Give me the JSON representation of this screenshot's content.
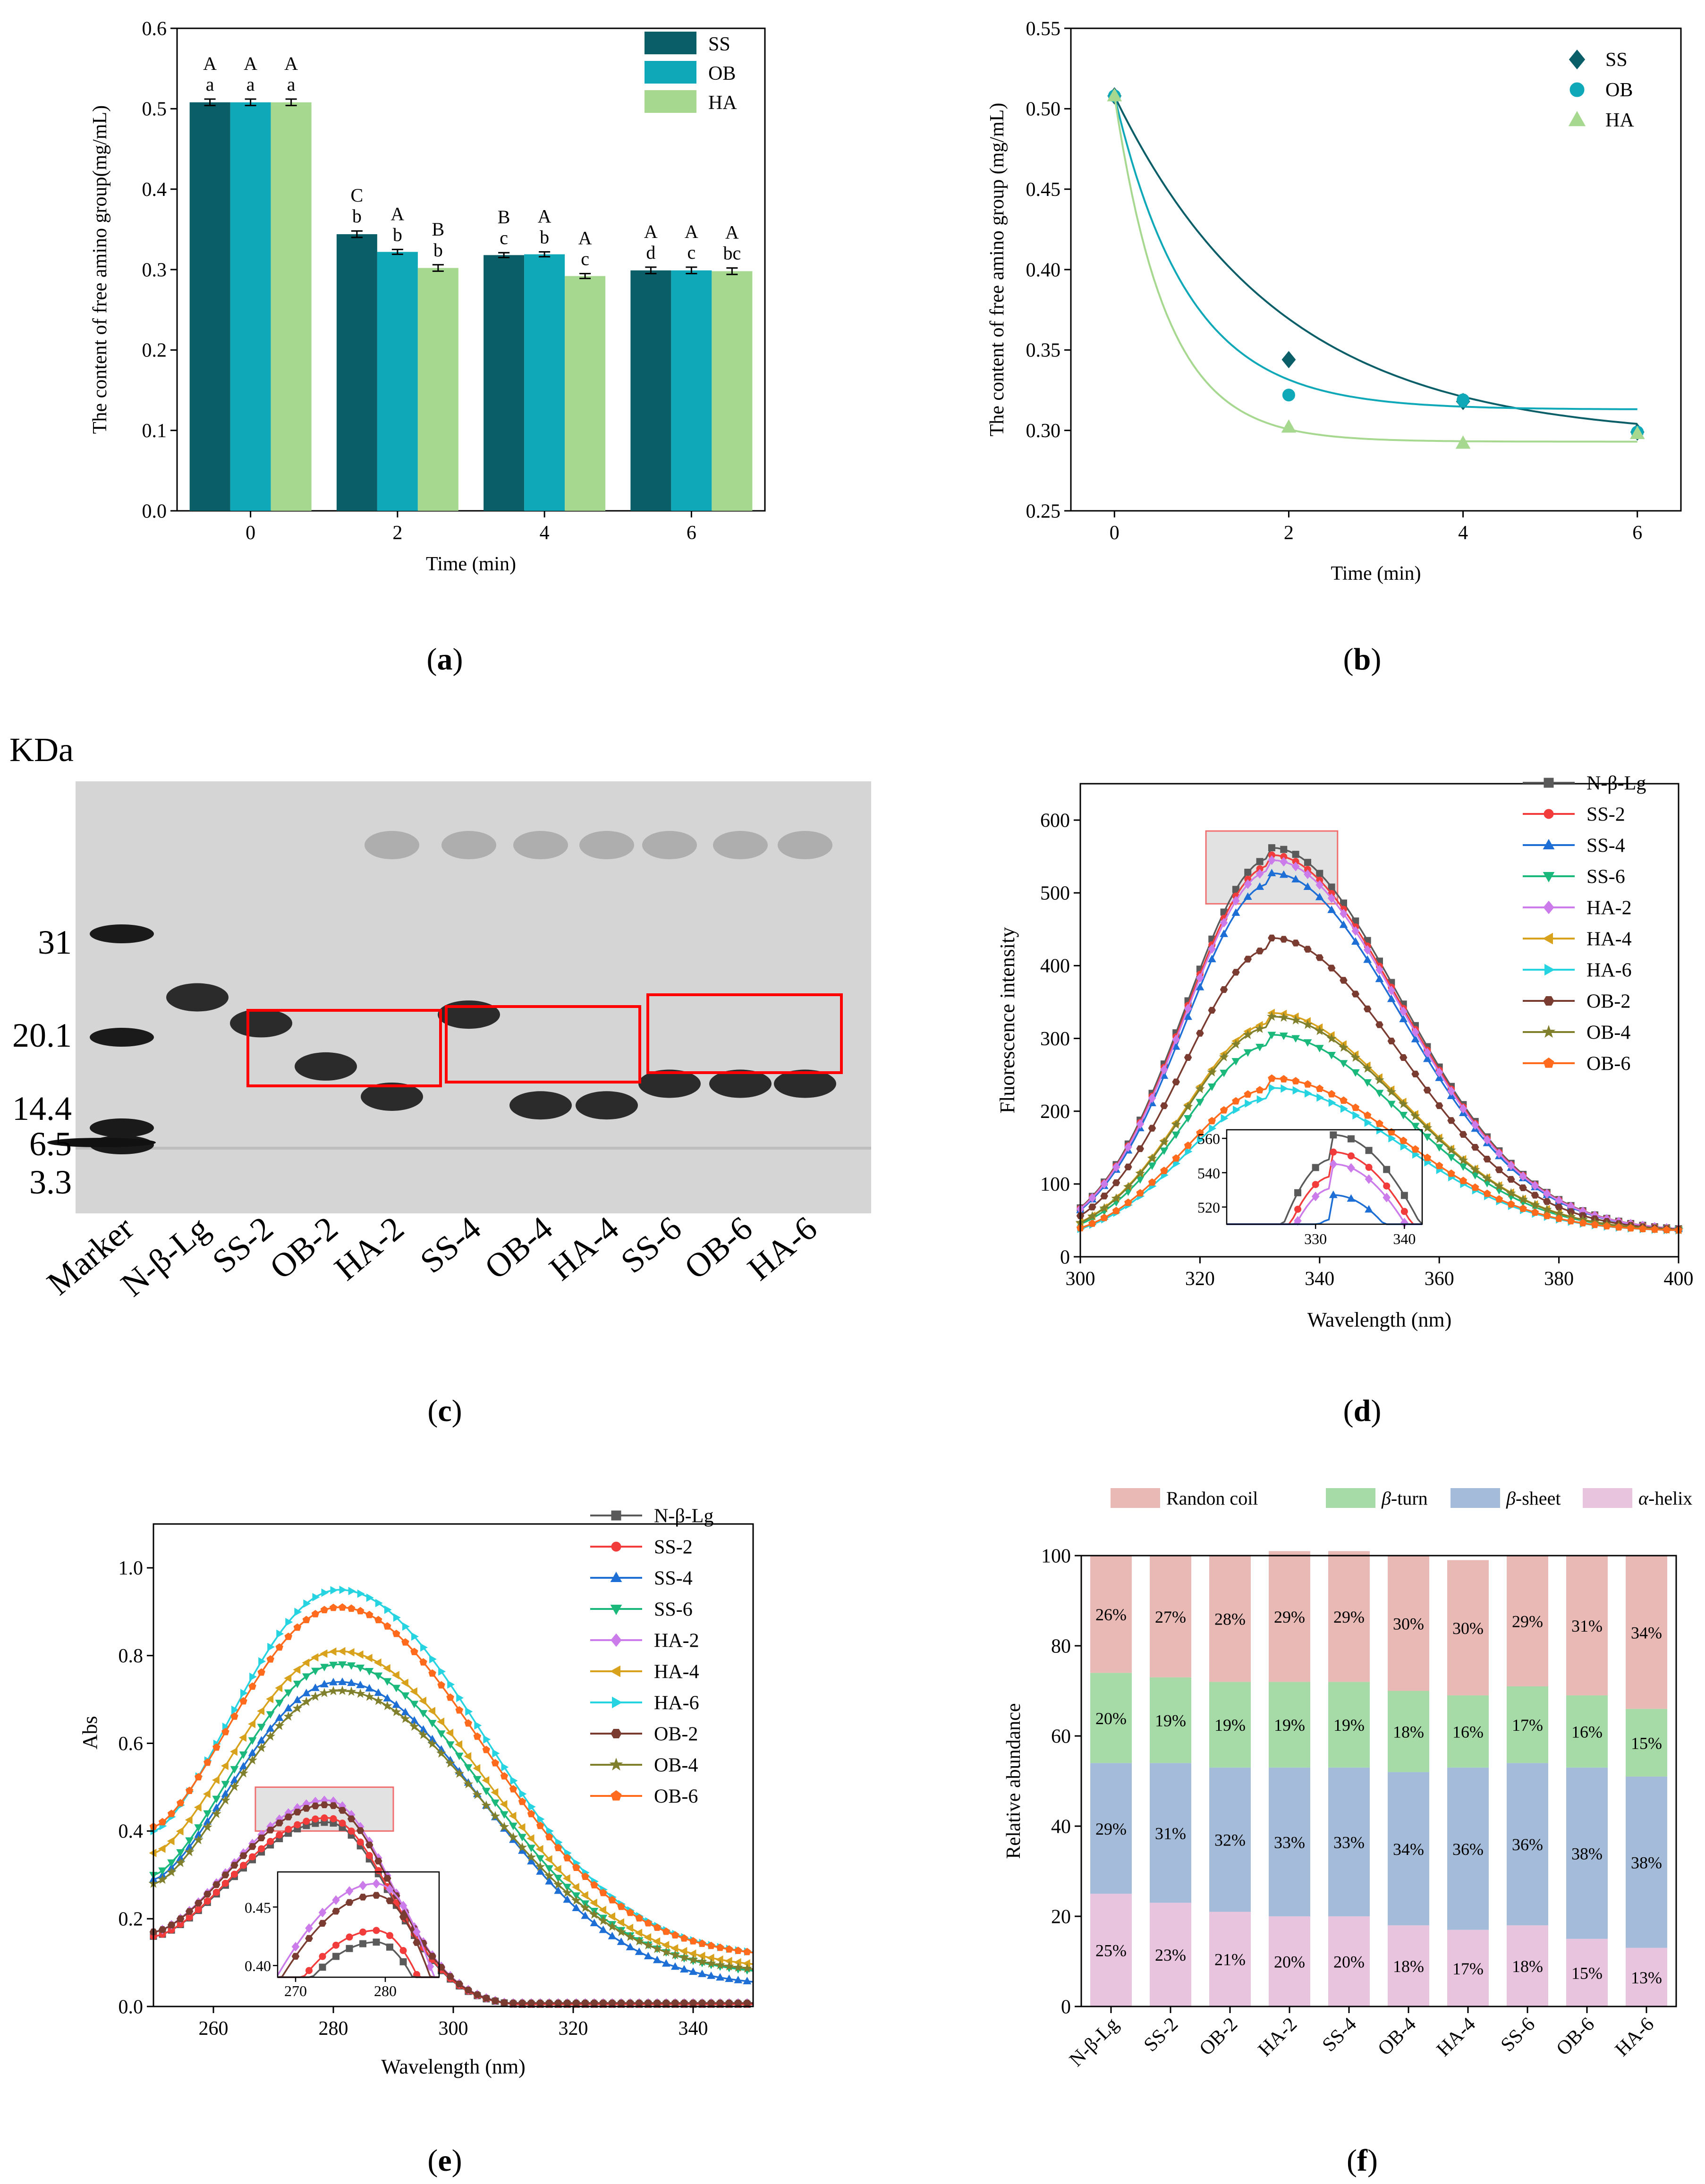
{
  "colors": {
    "SS": "#0a5e68",
    "OB": "#0fa8b8",
    "HA": "#a6d88f",
    "N-β-Lg": "#5a5a5a",
    "SS-2": "#f23b3b",
    "SS-4": "#1d6fd6",
    "SS-6": "#1ab87a",
    "HA-2": "#cc7bea",
    "HA-4": "#d9a21c",
    "HA-6": "#26d3e0",
    "OB-2": "#7a3b30",
    "OB-4": "#7f7f2c",
    "OB-6": "#ff6a1c",
    "coil": "#e8b9b5",
    "turn": "#a6dba8",
    "sheet": "#a4bcd9",
    "helix": "#e8c4df"
  },
  "panel_labels": {
    "a": "a",
    "b": "b",
    "c": "c",
    "d": "d",
    "e": "e",
    "f": "f"
  },
  "chart_data": [
    {
      "id": "a",
      "type": "bar",
      "xlabel": "Time (min)",
      "ylabel": "The content of free amino group(mg/mL)",
      "ylim": [
        0,
        0.6
      ],
      "yticks": [
        "0.0",
        "0.1",
        "0.2",
        "0.3",
        "0.4",
        "0.5",
        "0.6"
      ],
      "categories": [
        "0",
        "2",
        "4",
        "6"
      ],
      "series": [
        {
          "name": "SS",
          "values": [
            0.508,
            0.344,
            0.318,
            0.299
          ],
          "errors": [
            0.004,
            0.004,
            0.003,
            0.004
          ],
          "upper": [
            "A",
            "C",
            "B",
            "A"
          ],
          "lower": [
            "a",
            "b",
            "c",
            "d"
          ]
        },
        {
          "name": "OB",
          "values": [
            0.508,
            0.322,
            0.319,
            0.299
          ],
          "errors": [
            0.004,
            0.003,
            0.003,
            0.004
          ],
          "upper": [
            "A",
            "A",
            "A",
            "A"
          ],
          "lower": [
            "a",
            "b",
            "b",
            "c"
          ]
        },
        {
          "name": "HA",
          "values": [
            0.508,
            0.302,
            0.292,
            0.298
          ],
          "errors": [
            0.004,
            0.004,
            0.003,
            0.004
          ],
          "upper": [
            "A",
            "B",
            "A",
            "A"
          ],
          "lower": [
            "a",
            "b",
            "c",
            "bc"
          ]
        }
      ],
      "legend": [
        "SS",
        "OB",
        "HA"
      ],
      "legend_position": "top-right"
    },
    {
      "id": "b",
      "type": "scatter",
      "xlabel": "Time (min)",
      "ylabel": "The content of free amino group (mg/mL)",
      "xlim": [
        -0.5,
        6.5
      ],
      "xticks": [
        "0",
        "2",
        "4",
        "6"
      ],
      "ylim": [
        0.25,
        0.55
      ],
      "yticks": [
        "0.25",
        "0.30",
        "0.35",
        "0.40",
        "0.45",
        "0.50",
        "0.55"
      ],
      "series": [
        {
          "name": "SS",
          "marker": "diamond",
          "x": [
            0,
            2,
            4,
            6
          ],
          "y": [
            0.508,
            0.344,
            0.318,
            0.299
          ],
          "fit": {
            "y0": 0.295,
            "A": 0.213,
            "t": 1.9
          }
        },
        {
          "name": "OB",
          "marker": "circle",
          "x": [
            0,
            2,
            4,
            6
          ],
          "y": [
            0.508,
            0.322,
            0.319,
            0.299
          ],
          "fit": {
            "y0": 0.313,
            "A": 0.195,
            "t": 0.85
          }
        },
        {
          "name": "HA",
          "marker": "triangle",
          "x": [
            0,
            2,
            4,
            6
          ],
          "y": [
            0.508,
            0.302,
            0.292,
            0.298
          ],
          "fit": {
            "y0": 0.293,
            "A": 0.215,
            "t": 0.6
          }
        }
      ],
      "legend": [
        "SS",
        "OB",
        "HA"
      ],
      "legend_position": "top-right"
    },
    {
      "id": "d",
      "type": "line",
      "xlabel": "Wavelength (nm)",
      "ylabel": "Fluorescence intensity",
      "xlim": [
        300,
        400
      ],
      "xticks": [
        "300",
        "320",
        "340",
        "360",
        "380",
        "400"
      ],
      "ylim": [
        0,
        650
      ],
      "yticks": [
        "0",
        "100",
        "200",
        "300",
        "400",
        "500",
        "600"
      ],
      "peak_wavelength": 332,
      "tail_value": 35,
      "series": [
        {
          "name": "N-β-Lg",
          "marker": "square",
          "peak": 562
        },
        {
          "name": "SS-2",
          "marker": "circle",
          "peak": 552
        },
        {
          "name": "SS-4",
          "marker": "triangle",
          "peak": 527
        },
        {
          "name": "SS-6",
          "marker": "tri-down",
          "peak": 305
        },
        {
          "name": "HA-2",
          "marker": "diamond",
          "peak": 545
        },
        {
          "name": "HA-4",
          "marker": "tri-left",
          "peak": 335
        },
        {
          "name": "HA-6",
          "marker": "tri-right",
          "peak": 232
        },
        {
          "name": "OB-2",
          "marker": "hexagon",
          "peak": 438
        },
        {
          "name": "OB-4",
          "marker": "star",
          "peak": 330
        },
        {
          "name": "OB-6",
          "marker": "pentagon",
          "peak": 245
        }
      ],
      "inset": {
        "xlim": [
          320,
          342
        ],
        "ylim": [
          510,
          565
        ],
        "xticks": [
          "330",
          "340"
        ],
        "yticks": [
          "520",
          "540",
          "560"
        ],
        "series": [
          "N-β-Lg",
          "SS-2",
          "HA-2",
          "SS-4"
        ]
      },
      "highlight_box": {
        "x": [
          321,
          343
        ],
        "y": [
          485,
          585
        ]
      },
      "legend_position": "top-right"
    },
    {
      "id": "e",
      "type": "line",
      "xlabel": "Wavelength (nm)",
      "ylabel": "Abs",
      "xlim": [
        250,
        350
      ],
      "xticks": [
        "260",
        "280",
        "300",
        "320",
        "340"
      ],
      "ylim": [
        0,
        1.1
      ],
      "yticks": [
        "0.0",
        "0.2",
        "0.4",
        "0.6",
        "0.8",
        "1.0"
      ],
      "series": [
        {
          "name": "N-β-Lg",
          "marker": "square",
          "peak": 0.42,
          "base": 0.16,
          "tail": 0.005,
          "group": "low"
        },
        {
          "name": "SS-2",
          "marker": "circle",
          "peak": 0.43,
          "base": 0.16,
          "tail": 0.005,
          "group": "low"
        },
        {
          "name": "SS-4",
          "marker": "triangle",
          "peak": 0.74,
          "base": 0.29,
          "tail": 0.045,
          "group": "high"
        },
        {
          "name": "SS-6",
          "marker": "tri-down",
          "peak": 0.78,
          "base": 0.3,
          "tail": 0.07,
          "group": "high"
        },
        {
          "name": "HA-2",
          "marker": "diamond",
          "peak": 0.47,
          "base": 0.17,
          "tail": 0.008,
          "group": "low"
        },
        {
          "name": "HA-4",
          "marker": "tri-left",
          "peak": 0.81,
          "base": 0.35,
          "tail": 0.085,
          "group": "high"
        },
        {
          "name": "HA-6",
          "marker": "tri-right",
          "peak": 0.95,
          "base": 0.4,
          "tail": 0.11,
          "group": "high"
        },
        {
          "name": "OB-2",
          "marker": "hexagon",
          "peak": 0.46,
          "base": 0.17,
          "tail": 0.008,
          "group": "low"
        },
        {
          "name": "OB-4",
          "marker": "star",
          "peak": 0.72,
          "base": 0.28,
          "tail": 0.075,
          "group": "high"
        },
        {
          "name": "OB-6",
          "marker": "pentagon",
          "peak": 0.91,
          "base": 0.41,
          "tail": 0.11,
          "group": "high"
        }
      ],
      "inset": {
        "xlim": [
          268,
          286
        ],
        "ylim": [
          0.39,
          0.48
        ],
        "xticks": [
          "270",
          "280"
        ],
        "yticks": [
          "0.40",
          "0.45"
        ],
        "series": [
          "HA-2",
          "OB-2",
          "SS-2",
          "N-β-Lg"
        ]
      },
      "highlight_box": {
        "x": [
          267,
          290
        ],
        "y": [
          0.4,
          0.5
        ]
      },
      "legend_position": "top-right"
    },
    {
      "id": "f",
      "type": "bar",
      "stacked": true,
      "xlabel": "",
      "ylabel": "Relative abundance",
      "ylim": [
        0,
        100
      ],
      "yticks": [
        "0",
        "20",
        "40",
        "60",
        "80",
        "100"
      ],
      "categories": [
        "N-β-Lg",
        "SS-2",
        "OB-2",
        "HA-2",
        "SS-4",
        "OB-4",
        "HA-4",
        "SS-6",
        "OB-6",
        "HA-6"
      ],
      "series": [
        {
          "name": "α-helix",
          "key": "helix",
          "values": [
            25,
            23,
            21,
            20,
            20,
            18,
            17,
            18,
            15,
            13
          ],
          "labels": [
            "25%",
            "23%",
            "21%",
            "20%",
            "20%",
            "18%",
            "17%",
            "18%",
            "15%",
            "13%"
          ]
        },
        {
          "name": "β-sheet",
          "key": "sheet",
          "values": [
            29,
            31,
            32,
            33,
            33,
            34,
            36,
            36,
            38,
            38
          ],
          "labels": [
            "29%",
            "31%",
            "32%",
            "33%",
            "33%",
            "34%",
            "36%",
            "36%",
            "38%",
            "38%"
          ]
        },
        {
          "name": "β-turn",
          "key": "turn",
          "values": [
            20,
            19,
            19,
            19,
            19,
            18,
            16,
            17,
            16,
            15
          ],
          "labels": [
            "20%",
            "19%",
            "19%",
            "19%",
            "19%",
            "18%",
            "16%",
            "17%",
            "16%",
            "15%"
          ]
        },
        {
          "name": "Randon coil",
          "key": "coil",
          "values": [
            26,
            27,
            28,
            29,
            29,
            30,
            30,
            29,
            31,
            34
          ],
          "labels": [
            "26%",
            "27%",
            "28%",
            "29%",
            "29%",
            "30%",
            "30%",
            "29%",
            "31%",
            "34%"
          ]
        }
      ],
      "legend": [
        {
          "prefix": "",
          "greek": "",
          "suffix": "Randon coil",
          "key": "coil"
        },
        {
          "prefix": "",
          "greek": "β",
          "suffix": "-turn",
          "key": "turn"
        },
        {
          "prefix": "",
          "greek": "β",
          "suffix": "-sheet",
          "key": "sheet"
        },
        {
          "prefix": "",
          "greek": "α",
          "suffix": "-helix",
          "key": "helix"
        }
      ],
      "legend_position": "top"
    }
  ],
  "gel": {
    "unit_label": "KDa",
    "marker_labels": [
      "31",
      "20.1",
      "14.4",
      "6.5",
      "3.3"
    ],
    "lanes": [
      "Marker",
      "N-β-Lg",
      "SS-2",
      "OB-2",
      "HA-2",
      "SS-4",
      "OB-4",
      "HA-4",
      "SS-6",
      "OB-6",
      "HA-6"
    ],
    "lane_band_position": [
      null,
      0.5,
      0.44,
      0.34,
      0.27,
      0.46,
      0.25,
      0.25,
      0.3,
      0.3,
      0.3
    ]
  }
}
